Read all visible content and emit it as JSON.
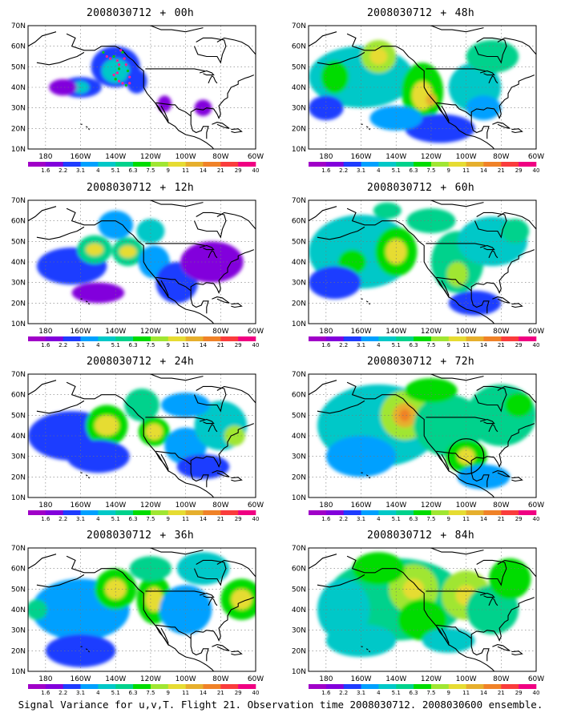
{
  "figure": {
    "caption": "Signal Variance for u,v,T. Flight 21. Observation time 2008030712. 2008030600 ensemble."
  },
  "colorbar": {
    "levels": [
      "1.6",
      "2.2",
      "3.1",
      "4",
      "5.1",
      "6.3",
      "7.5",
      "9",
      "11",
      "14",
      "21",
      "29",
      "40"
    ],
    "colors": [
      "#a000c8",
      "#8200dc",
      "#1e3cff",
      "#00a0ff",
      "#00c8c8",
      "#00d28c",
      "#00dc00",
      "#a0e632",
      "#e6dc32",
      "#e6af2d",
      "#f08228",
      "#fa3c3c",
      "#f00082"
    ]
  },
  "axes": {
    "lat_labels": [
      "10N",
      "20N",
      "30N",
      "40N",
      "50N",
      "60N",
      "70N"
    ],
    "lon_labels": [
      "180",
      "160W",
      "140W",
      "120W",
      "100W",
      "80W",
      "60W"
    ],
    "lat_range": [
      10,
      70
    ],
    "lon_range": [
      -190,
      -60
    ]
  },
  "panels": [
    {
      "id": "p00",
      "date": "2008030712",
      "lead": "00h",
      "marker": "dropsonde-track",
      "blobs": [
        [
          -140,
          50,
          14,
          10,
          2
        ],
        [
          -140,
          48,
          8,
          6,
          4
        ],
        [
          -160,
          40,
          12,
          5,
          2
        ],
        [
          -160,
          40,
          5,
          3,
          4
        ],
        [
          -170,
          40,
          8,
          4,
          1
        ],
        [
          -128,
          43,
          6,
          6,
          2
        ],
        [
          -112,
          32,
          4,
          4,
          1
        ],
        [
          -90,
          30,
          5,
          4,
          1
        ]
      ]
    },
    {
      "id": "p12",
      "date": "2008030712",
      "lead": "12h",
      "blobs": [
        [
          -165,
          38,
          20,
          9,
          2
        ],
        [
          -152,
          46,
          10,
          7,
          5
        ],
        [
          -152,
          46,
          5,
          3,
          8
        ],
        [
          -133,
          45,
          9,
          7,
          5
        ],
        [
          -133,
          45,
          5,
          3,
          8
        ],
        [
          -140,
          58,
          10,
          7,
          3
        ],
        [
          -118,
          40,
          9,
          8,
          3
        ],
        [
          -105,
          30,
          12,
          10,
          2
        ],
        [
          -85,
          40,
          18,
          10,
          1
        ],
        [
          -150,
          25,
          15,
          5,
          1
        ],
        [
          -120,
          55,
          8,
          6,
          4
        ]
      ]
    },
    {
      "id": "p24",
      "date": "2008030712",
      "lead": "24h",
      "blobs": [
        [
          -165,
          40,
          25,
          12,
          2
        ],
        [
          -145,
          45,
          12,
          10,
          6
        ],
        [
          -145,
          45,
          7,
          5,
          8
        ],
        [
          -125,
          55,
          10,
          8,
          5
        ],
        [
          -118,
          42,
          9,
          7,
          6
        ],
        [
          -118,
          42,
          5,
          4,
          8
        ],
        [
          -100,
          35,
          12,
          9,
          3
        ],
        [
          -80,
          45,
          15,
          12,
          4
        ],
        [
          -72,
          40,
          6,
          5,
          7
        ],
        [
          -150,
          30,
          18,
          8,
          2
        ],
        [
          -90,
          25,
          15,
          6,
          2
        ],
        [
          -100,
          55,
          14,
          6,
          3
        ]
      ]
    },
    {
      "id": "p36",
      "date": "2008030712",
      "lead": "36h",
      "blobs": [
        [
          -160,
          40,
          28,
          15,
          3
        ],
        [
          -140,
          50,
          12,
          10,
          6
        ],
        [
          -140,
          50,
          6,
          5,
          8
        ],
        [
          -118,
          45,
          10,
          12,
          6
        ],
        [
          -118,
          45,
          5,
          6,
          8
        ],
        [
          -120,
          60,
          12,
          6,
          5
        ],
        [
          -100,
          40,
          15,
          12,
          3
        ],
        [
          -68,
          45,
          12,
          10,
          6
        ],
        [
          -68,
          45,
          6,
          5,
          8
        ],
        [
          -185,
          40,
          6,
          5,
          5
        ],
        [
          -160,
          20,
          20,
          8,
          2
        ],
        [
          -90,
          60,
          15,
          8,
          4
        ]
      ]
    },
    {
      "id": "p48",
      "date": "2008030712",
      "lead": "48h",
      "blobs": [
        [
          -160,
          45,
          30,
          15,
          4
        ],
        [
          -150,
          55,
          10,
          8,
          7
        ],
        [
          -150,
          55,
          5,
          4,
          8
        ],
        [
          -175,
          45,
          8,
          8,
          6
        ],
        [
          -125,
          38,
          12,
          14,
          6
        ],
        [
          -125,
          36,
          6,
          7,
          8
        ],
        [
          -120,
          34,
          3,
          3,
          9
        ],
        [
          -95,
          40,
          15,
          12,
          4
        ],
        [
          -90,
          30,
          10,
          6,
          3
        ],
        [
          -85,
          55,
          15,
          8,
          5
        ],
        [
          -180,
          30,
          10,
          6,
          2
        ],
        [
          -115,
          20,
          20,
          7,
          2
        ],
        [
          -140,
          25,
          15,
          6,
          3
        ]
      ]
    },
    {
      "id": "p60",
      "date": "2008030712",
      "lead": "60h",
      "blobs": [
        [
          -160,
          45,
          30,
          18,
          4
        ],
        [
          -140,
          45,
          12,
          12,
          6
        ],
        [
          -140,
          45,
          6,
          6,
          8
        ],
        [
          -165,
          40,
          8,
          6,
          6
        ],
        [
          -105,
          40,
          15,
          15,
          5
        ],
        [
          -105,
          34,
          6,
          6,
          7
        ],
        [
          -85,
          50,
          20,
          12,
          4
        ],
        [
          -72,
          55,
          8,
          6,
          5
        ],
        [
          -120,
          60,
          14,
          6,
          5
        ],
        [
          -175,
          30,
          15,
          8,
          2
        ],
        [
          -95,
          20,
          15,
          6,
          2
        ],
        [
          -145,
          65,
          8,
          4,
          5
        ]
      ]
    },
    {
      "id": "p72",
      "date": "2008030712",
      "lead": "72h",
      "marker": "circle",
      "blobs": [
        [
          -150,
          45,
          35,
          20,
          4
        ],
        [
          -135,
          50,
          14,
          12,
          7
        ],
        [
          -135,
          50,
          7,
          6,
          9
        ],
        [
          -135,
          50,
          3,
          3,
          10
        ],
        [
          -110,
          45,
          20,
          15,
          5
        ],
        [
          -100,
          30,
          12,
          8,
          6
        ],
        [
          -100,
          30,
          5,
          4,
          8
        ],
        [
          -80,
          50,
          20,
          15,
          5
        ],
        [
          -70,
          55,
          8,
          6,
          6
        ],
        [
          -160,
          30,
          20,
          10,
          3
        ],
        [
          -90,
          20,
          15,
          6,
          3
        ],
        [
          -120,
          62,
          15,
          6,
          6
        ]
      ]
    },
    {
      "id": "p84",
      "date": "2008030712",
      "lead": "84h",
      "blobs": [
        [
          -140,
          45,
          40,
          20,
          5
        ],
        [
          -130,
          50,
          14,
          12,
          7
        ],
        [
          -130,
          50,
          6,
          5,
          8
        ],
        [
          -100,
          47,
          14,
          12,
          7
        ],
        [
          -100,
          47,
          6,
          5,
          8
        ],
        [
          -125,
          35,
          14,
          10,
          6
        ],
        [
          -85,
          40,
          15,
          12,
          5
        ],
        [
          -170,
          40,
          15,
          15,
          4
        ],
        [
          -160,
          25,
          20,
          8,
          4
        ],
        [
          -75,
          55,
          12,
          10,
          6
        ],
        [
          -110,
          25,
          15,
          6,
          4
        ],
        [
          -150,
          60,
          15,
          8,
          6
        ]
      ]
    }
  ]
}
